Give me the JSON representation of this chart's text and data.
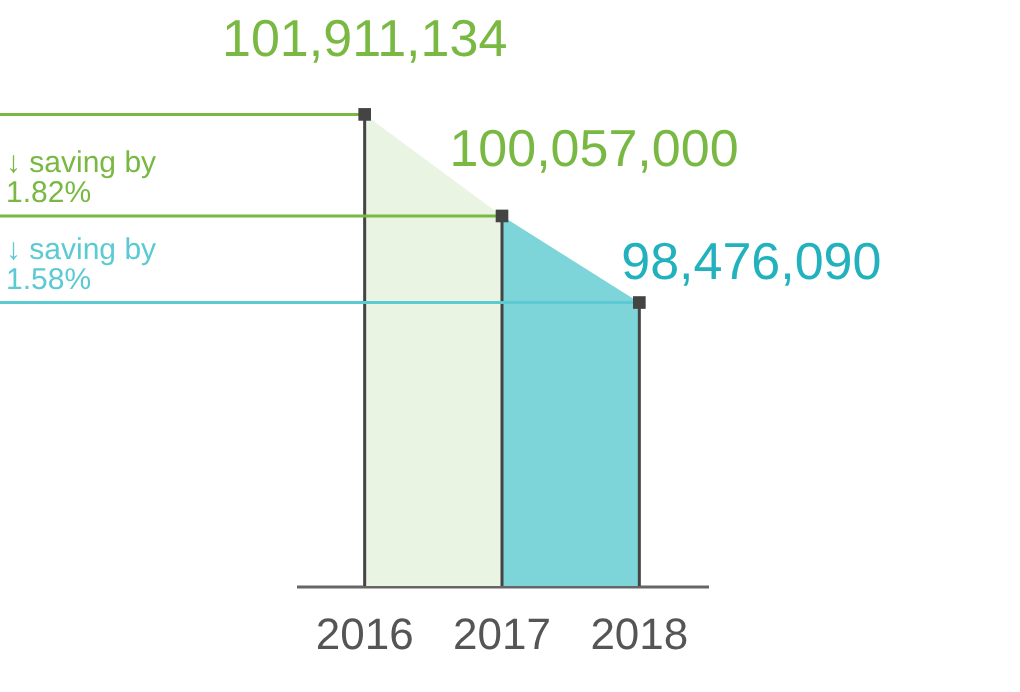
{
  "chart_data": {
    "type": "area",
    "categories": [
      "2016",
      "2017",
      "2018"
    ],
    "series": [
      {
        "values": [
          101911134,
          100057000,
          98476090
        ],
        "colors": [
          "#eaf4e2",
          "#7dd5da",
          "#7dd5da"
        ],
        "value_labels": [
          "101,911,134",
          "100,057,000",
          "98,476,090"
        ]
      }
    ],
    "colors": [
      "#79b943",
      "#79b943",
      "#22b2bd"
    ],
    "ylim": [
      93300000,
      104000000
    ],
    "marker": "square",
    "grid": "x",
    "tick_labels": "x",
    "ref_lines": [
      {
        "axis": "y",
        "value": 101911134,
        "color": "#79b943"
      },
      {
        "axis": "y",
        "value": 100057000,
        "label": "↓ saving by 1.82%",
        "color": "#79b943"
      },
      {
        "axis": "y",
        "value": 98476090,
        "label": "↓ saving by 1.58%",
        "color": "#5ccad2"
      }
    ]
  }
}
